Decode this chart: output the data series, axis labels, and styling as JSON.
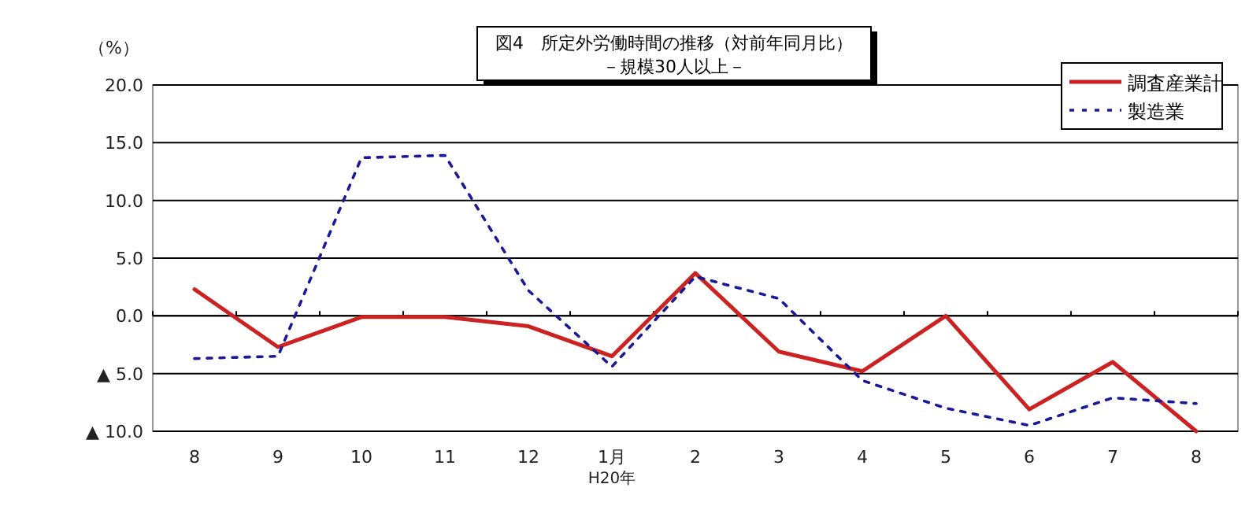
{
  "chart_data": {
    "type": "line",
    "title": "図4　所定外労働時間の推移（対前年同月比）",
    "subtitle": "－規模30人以上－",
    "ylabel": "（%）",
    "categories": [
      "8",
      "9",
      "10",
      "11",
      "12",
      "1月\nH20年",
      "2",
      "3",
      "4",
      "5",
      "6",
      "7",
      "8"
    ],
    "series": [
      {
        "name": "調査産業計",
        "color": "#cc2222",
        "line_style": "solid",
        "values": [
          2.3,
          -2.7,
          -0.1,
          -0.1,
          -0.9,
          -3.5,
          3.7,
          -3.1,
          -4.8,
          0.0,
          -8.1,
          -4.0,
          -10.0
        ]
      },
      {
        "name": "製造業",
        "color": "#1a1a99",
        "line_style": "dotted",
        "values": [
          -3.7,
          -3.5,
          13.7,
          13.9,
          2.2,
          -4.4,
          3.4,
          1.5,
          -5.6,
          -8.0,
          -9.5,
          -7.1,
          -7.6
        ]
      }
    ],
    "ylim": [
      -10,
      20
    ],
    "yticks": [
      {
        "value": -10,
        "label": "▲ 10.0"
      },
      {
        "value": -5,
        "label": "▲ 5.0"
      },
      {
        "value": 0,
        "label": "0.0"
      },
      {
        "value": 5,
        "label": "5.0"
      },
      {
        "value": 10,
        "label": "10.0"
      },
      {
        "value": 15,
        "label": "15.0"
      },
      {
        "value": 20,
        "label": "20.0"
      }
    ],
    "grid": "y",
    "legend": "top right",
    "marker": "none"
  }
}
